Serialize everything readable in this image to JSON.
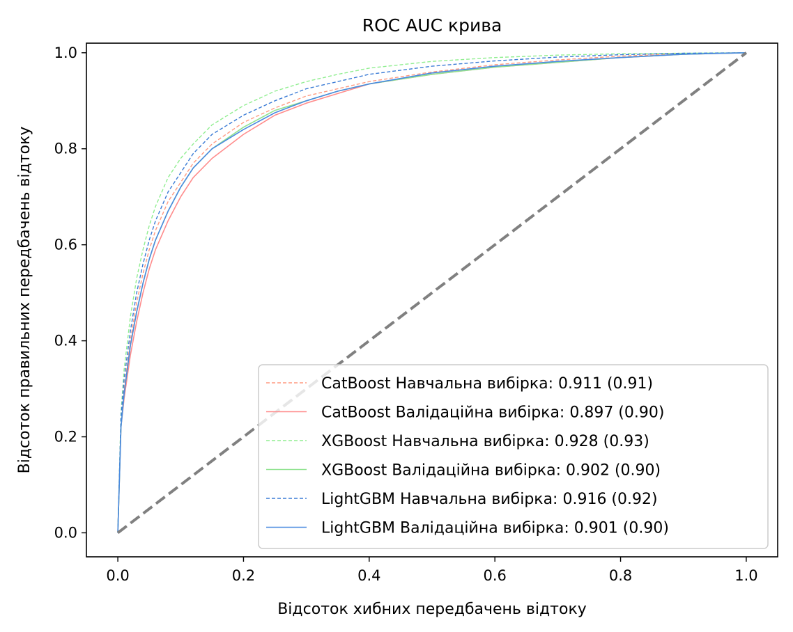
{
  "chart_data": {
    "type": "line",
    "title": "ROC AUC крива",
    "xlabel": "Відсоток хибних передбачень відтоку",
    "ylabel": "Відсоток правильних передбачень відтоку",
    "xlim": [
      -0.05,
      1.05
    ],
    "ylim": [
      -0.05,
      1.02
    ],
    "xticks": [
      0.0,
      0.2,
      0.4,
      0.6,
      0.8,
      1.0
    ],
    "xtick_labels": [
      "0.0",
      "0.2",
      "0.4",
      "0.6",
      "0.8",
      "1.0"
    ],
    "yticks": [
      0.0,
      0.2,
      0.4,
      0.6,
      0.8,
      1.0
    ],
    "ytick_labels": [
      "0.0",
      "0.2",
      "0.4",
      "0.6",
      "0.8",
      "1.0"
    ],
    "grid": false,
    "legend_position": "lower-right",
    "diagonal": {
      "x": [
        0,
        1
      ],
      "y": [
        0,
        1
      ],
      "color": "#808080",
      "style": "dashed"
    },
    "series": [
      {
        "name": "CatBoost Навчальна вибірка: 0.911 (0.91)",
        "color": "#ff9a80",
        "style": "dashed",
        "x": [
          0,
          0.005,
          0.01,
          0.02,
          0.03,
          0.04,
          0.05,
          0.06,
          0.07,
          0.08,
          0.1,
          0.12,
          0.15,
          0.2,
          0.25,
          0.3,
          0.35,
          0.4,
          0.5,
          0.6,
          0.7,
          0.8,
          0.9,
          1.0
        ],
        "y": [
          0,
          0.23,
          0.3,
          0.4,
          0.48,
          0.54,
          0.59,
          0.63,
          0.66,
          0.69,
          0.73,
          0.77,
          0.81,
          0.855,
          0.885,
          0.91,
          0.925,
          0.94,
          0.96,
          0.975,
          0.985,
          0.993,
          0.998,
          1.0
        ]
      },
      {
        "name": "CatBoost Валідаційна вибірка: 0.897 (0.90)",
        "color": "#ff8c8c",
        "style": "solid",
        "x": [
          0,
          0.005,
          0.01,
          0.02,
          0.03,
          0.04,
          0.05,
          0.06,
          0.07,
          0.08,
          0.1,
          0.12,
          0.15,
          0.2,
          0.25,
          0.3,
          0.35,
          0.4,
          0.5,
          0.6,
          0.7,
          0.8,
          0.9,
          1.0
        ],
        "y": [
          0,
          0.22,
          0.28,
          0.37,
          0.44,
          0.5,
          0.55,
          0.59,
          0.62,
          0.65,
          0.7,
          0.74,
          0.78,
          0.83,
          0.87,
          0.895,
          0.915,
          0.935,
          0.955,
          0.97,
          0.98,
          0.99,
          0.997,
          1.0
        ]
      },
      {
        "name": "XGBoost Навчальна вибірка: 0.928 (0.93)",
        "color": "#90ee90",
        "style": "dashed",
        "x": [
          0,
          0.005,
          0.01,
          0.02,
          0.03,
          0.04,
          0.05,
          0.06,
          0.07,
          0.08,
          0.1,
          0.12,
          0.15,
          0.2,
          0.25,
          0.3,
          0.35,
          0.4,
          0.5,
          0.6,
          0.7,
          0.8,
          0.9,
          1.0
        ],
        "y": [
          0,
          0.25,
          0.34,
          0.45,
          0.53,
          0.59,
          0.64,
          0.68,
          0.71,
          0.74,
          0.78,
          0.81,
          0.85,
          0.89,
          0.92,
          0.94,
          0.955,
          0.968,
          0.982,
          0.99,
          0.995,
          0.998,
          0.999,
          1.0
        ]
      },
      {
        "name": "XGBoost Валідаційна вибірка: 0.902 (0.90)",
        "color": "#8fe28f",
        "style": "solid",
        "x": [
          0,
          0.005,
          0.01,
          0.02,
          0.03,
          0.04,
          0.05,
          0.06,
          0.07,
          0.08,
          0.1,
          0.12,
          0.15,
          0.2,
          0.25,
          0.3,
          0.35,
          0.4,
          0.5,
          0.6,
          0.7,
          0.8,
          0.9,
          1.0
        ],
        "y": [
          0,
          0.22,
          0.29,
          0.39,
          0.46,
          0.52,
          0.57,
          0.61,
          0.64,
          0.67,
          0.72,
          0.76,
          0.8,
          0.845,
          0.88,
          0.9,
          0.92,
          0.935,
          0.955,
          0.97,
          0.98,
          0.99,
          0.997,
          1.0
        ]
      },
      {
        "name": "LightGBM Навчальна вибірка: 0.916 (0.92)",
        "color": "#3a7bd5",
        "style": "dashed",
        "x": [
          0,
          0.005,
          0.01,
          0.02,
          0.03,
          0.04,
          0.05,
          0.06,
          0.07,
          0.08,
          0.1,
          0.12,
          0.15,
          0.2,
          0.25,
          0.3,
          0.35,
          0.4,
          0.5,
          0.6,
          0.7,
          0.8,
          0.9,
          1.0
        ],
        "y": [
          0,
          0.24,
          0.32,
          0.42,
          0.5,
          0.56,
          0.61,
          0.65,
          0.68,
          0.71,
          0.75,
          0.79,
          0.83,
          0.87,
          0.9,
          0.925,
          0.94,
          0.955,
          0.972,
          0.983,
          0.991,
          0.996,
          0.999,
          1.0
        ]
      },
      {
        "name": "LightGBM Валідаційна вибірка: 0.901 (0.90)",
        "color": "#4a8ae0",
        "style": "solid",
        "x": [
          0,
          0.005,
          0.01,
          0.02,
          0.03,
          0.04,
          0.05,
          0.06,
          0.07,
          0.08,
          0.1,
          0.12,
          0.15,
          0.2,
          0.25,
          0.3,
          0.35,
          0.4,
          0.5,
          0.6,
          0.7,
          0.8,
          0.9,
          1.0
        ],
        "y": [
          0,
          0.22,
          0.29,
          0.39,
          0.46,
          0.52,
          0.57,
          0.61,
          0.64,
          0.67,
          0.72,
          0.76,
          0.8,
          0.84,
          0.875,
          0.9,
          0.92,
          0.935,
          0.958,
          0.972,
          0.982,
          0.99,
          0.997,
          1.0
        ]
      }
    ]
  }
}
